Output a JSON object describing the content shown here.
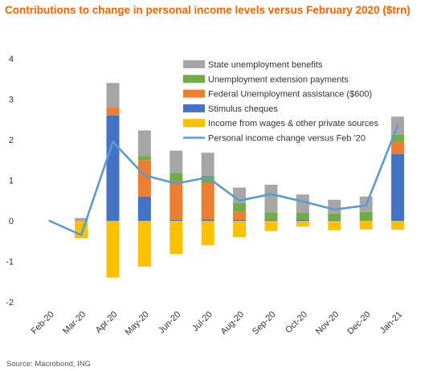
{
  "title": "Contributions to change in personal income levels versus February 2020 ($trn)",
  "source": "Source: Macrobond, ING",
  "colors": {
    "state": "#a6a6a6",
    "extension": "#70ad47",
    "federal": "#ed7d31",
    "stimulus": "#4472c4",
    "wages": "#ffc000",
    "line": "#5b9bd5"
  },
  "chart_data": {
    "type": "bar",
    "stacked": true,
    "title": "Contributions to change in personal income levels versus February 2020 ($trn)",
    "categories": [
      "Feb-20",
      "Mar-20",
      "Apr-20",
      "May-20",
      "Jun-20",
      "Jul-20",
      "Aug-20",
      "Sep-20",
      "Oct-20",
      "Nov-20",
      "Dec-20",
      "Jan-21"
    ],
    "ylim": [
      -2,
      4
    ],
    "yticks": [
      -2,
      -1,
      0,
      1,
      2,
      3,
      4
    ],
    "grid": false,
    "legend_position": "top-right",
    "series": [
      {
        "name": "State unemployment benefits",
        "key": "state",
        "type": "bar",
        "values": [
          0,
          0.07,
          0.6,
          0.63,
          0.55,
          0.57,
          0.38,
          0.68,
          0.45,
          0.34,
          0.38,
          0.45
        ]
      },
      {
        "name": "Unemployment extension payments",
        "key": "extension",
        "type": "bar",
        "values": [
          0,
          0,
          0,
          0.1,
          0.2,
          0.18,
          0.22,
          0.2,
          0.18,
          0.17,
          0.22,
          0.17
        ]
      },
      {
        "name": "Federal Unemployment assistance ($600)",
        "key": "federal",
        "type": "bar",
        "values": [
          0,
          0,
          0.2,
          0.9,
          0.96,
          0.9,
          0.2,
          0,
          0,
          0,
          0,
          0.3
        ]
      },
      {
        "name": "Stimulus cheques",
        "key": "stimulus",
        "type": "bar",
        "values": [
          0,
          0,
          2.6,
          0.6,
          0.02,
          0.03,
          0.02,
          0.01,
          0.02,
          0.01,
          0,
          1.65
        ]
      },
      {
        "name": "Income from wages & other private sources",
        "key": "wages",
        "type": "bar",
        "values": [
          0,
          -0.43,
          -1.4,
          -1.13,
          -0.82,
          -0.6,
          -0.4,
          -0.25,
          -0.14,
          -0.23,
          -0.21,
          -0.22
        ]
      },
      {
        "name": "Personal income change versus Feb '20",
        "key": "line",
        "type": "line",
        "values": [
          0,
          -0.35,
          1.95,
          1.12,
          0.92,
          1.07,
          0.5,
          0.66,
          0.48,
          0.28,
          0.38,
          2.35
        ]
      }
    ]
  }
}
